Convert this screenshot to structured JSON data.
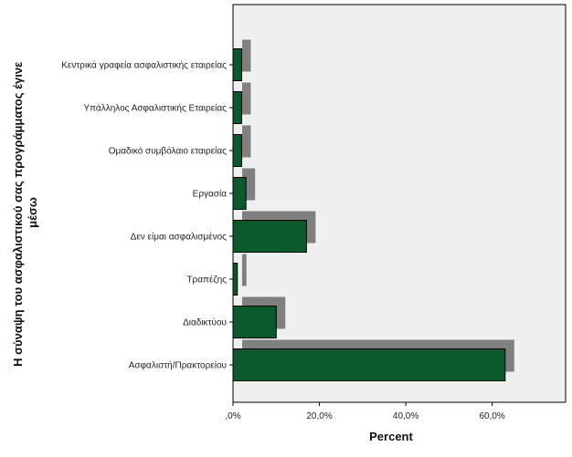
{
  "chart_data": {
    "type": "bar",
    "orientation": "horizontal",
    "categories": [
      "Κεντρικά γραφεία ασφαλιστικής εταιρείας",
      "Υπάλληλος Ασφαλιστικής Εταιρείας",
      "Ομαδικό συμβόλαιο εταιρείας",
      "Εργασία",
      "Δεν είμαι ασφαλισμένος",
      "Τραπέζης",
      "Διαδικτύου",
      "Ασφαλιστή/Πρακτορείου"
    ],
    "values": [
      2,
      2,
      2,
      3,
      17,
      1,
      10,
      63
    ],
    "xlabel": "Percent",
    "ylabel": "Η σύναψη του ασφαλιστικού σας προγράμματος έγινε μέσω",
    "xlim": [
      0,
      77
    ],
    "xticks": [
      0,
      20,
      40,
      60
    ],
    "xtick_labels": [
      ",0%",
      "20,0%",
      "40,0%",
      "60,0%"
    ],
    "grid": false,
    "legend": "none",
    "colors": {
      "bar": "#0b5a2b",
      "shadow": "#808080",
      "plot_bg": "#efefef",
      "axis": "#000000"
    }
  }
}
